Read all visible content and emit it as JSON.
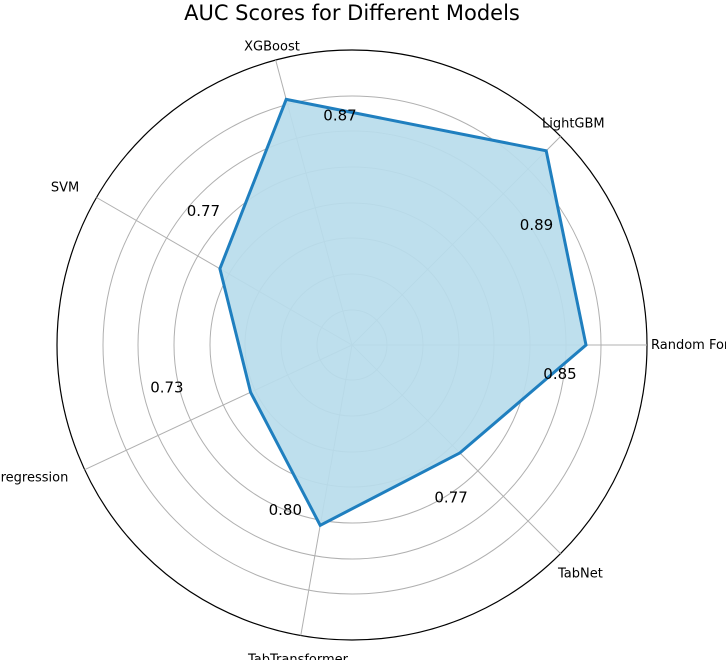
{
  "chart_data": {
    "type": "radar",
    "title": "AUC Scores for Different Models",
    "categories": [
      "Random Forest",
      "LightGBM",
      "XGBoost",
      "SVM",
      "Logistic regression",
      "TabNet",
      "TabTransformer"
    ],
    "category_angles_deg": [
      0,
      45,
      105,
      150,
      205,
      315,
      260
    ],
    "series": [
      {
        "values": [
          0.85,
          0.89,
          0.87,
          0.77,
          0.73,
          0.77,
          0.8
        ],
        "color": "#1f7fbf",
        "fill": "#b9dcec"
      }
    ],
    "value_labels": [
      "0.85",
      "0.89",
      "0.87",
      "0.77",
      "0.73",
      "0.77",
      "0.80"
    ],
    "grid": true,
    "grid_rings": 8,
    "frame_color": "#000000",
    "grid_color": "#b0b0b0"
  }
}
